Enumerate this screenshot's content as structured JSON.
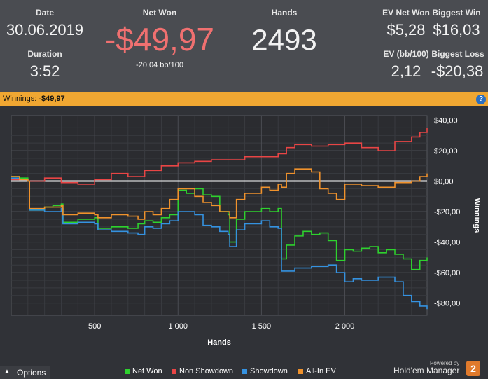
{
  "header": {
    "date_label": "Date",
    "date_value": "30.06.2019",
    "duration_label": "Duration",
    "duration_value": "3:52",
    "netwon_label": "Net Won",
    "netwon_value": "-$49,97",
    "netwon_sub": "-20,04 bb/100",
    "hands_label": "Hands",
    "hands_value": "2493",
    "evnet_label": "EV Net Won",
    "evnet_value": "$5,28",
    "bigwin_label": "Biggest Win",
    "bigwin_value": "$16,03",
    "evbb_label": "EV (bb/100)",
    "evbb_value": "2,12",
    "bigloss_label": "Biggest Loss",
    "bigloss_value": "-$20,38",
    "netwon_color": "#f07070"
  },
  "bar": {
    "label": "Winnings:",
    "value": "-$49,97",
    "help": "?"
  },
  "footer": {
    "options_label": "Options",
    "powered_label": "Powered by",
    "brand_label": "Hold'em Manager",
    "logo_text": "2"
  },
  "chart_data": {
    "type": "line",
    "xlabel": "Hands",
    "ylabel": "Winnings",
    "xlim": [
      0,
      2493
    ],
    "ylim": [
      -88,
      43
    ],
    "x_ticks": [
      500,
      1000,
      1500,
      2000
    ],
    "x_tick_labels": [
      "500",
      "1 000",
      "1 500",
      "2 000"
    ],
    "y_ticks": [
      40,
      20,
      0,
      -20,
      -40,
      -60,
      -80
    ],
    "y_tick_labels": [
      "$40,00",
      "$20,00",
      "$0,00",
      "-$20,00",
      "-$40,00",
      "-$60,00",
      "-$80,00"
    ],
    "grid": true,
    "legend_position": "bottom",
    "series": [
      {
        "name": "Net Won",
        "color": "#2ed12e",
        "x": [
          0,
          50,
          100,
          110,
          200,
          250,
          300,
          310,
          400,
          500,
          520,
          600,
          700,
          760,
          800,
          850,
          900,
          950,
          1000,
          1050,
          1100,
          1150,
          1200,
          1250,
          1300,
          1310,
          1350,
          1400,
          1500,
          1550,
          1600,
          1620,
          1650,
          1700,
          1750,
          1800,
          1850,
          1900,
          1950,
          2000,
          2050,
          2100,
          2150,
          2200,
          2250,
          2300,
          2350,
          2400,
          2450,
          2493
        ],
        "y": [
          3,
          2,
          0,
          -19,
          -17,
          -16,
          -15,
          -27,
          -25,
          -24,
          -31,
          -30,
          -31,
          -28,
          -26,
          -27,
          -24,
          -22,
          -6,
          -8,
          -5,
          -9,
          -10,
          -20,
          -22,
          -40,
          -25,
          -20,
          -18,
          -20,
          -18,
          -51,
          -42,
          -36,
          -33,
          -35,
          -34,
          -39,
          -52,
          -45,
          -46,
          -44,
          -43,
          -47,
          -45,
          -48,
          -51,
          -58,
          -52,
          -50
        ]
      },
      {
        "name": "Non Showdown",
        "color": "#e84545",
        "x": [
          0,
          100,
          200,
          300,
          400,
          500,
          600,
          700,
          800,
          900,
          1000,
          1100,
          1200,
          1300,
          1400,
          1500,
          1600,
          1650,
          1700,
          1800,
          1900,
          2000,
          2100,
          2200,
          2300,
          2400,
          2450,
          2493
        ],
        "y": [
          1,
          0,
          2,
          -1,
          -2,
          1,
          5,
          3,
          7,
          10,
          12,
          13,
          14,
          14,
          16,
          16,
          18,
          22,
          24,
          23,
          24,
          25,
          22,
          20,
          26,
          29,
          32,
          35
        ]
      },
      {
        "name": "Showdown",
        "color": "#3592e0",
        "x": [
          0,
          50,
          100,
          110,
          200,
          300,
          310,
          400,
          500,
          520,
          600,
          700,
          760,
          800,
          850,
          900,
          950,
          1000,
          1100,
          1150,
          1200,
          1250,
          1300,
          1310,
          1350,
          1400,
          1500,
          1550,
          1600,
          1620,
          1700,
          1800,
          1900,
          1950,
          2000,
          2050,
          2100,
          2200,
          2300,
          2350,
          2400,
          2450,
          2493
        ],
        "y": [
          2,
          1,
          0,
          -19,
          -20,
          -18,
          -28,
          -27,
          -28,
          -32,
          -33,
          -34,
          -35,
          -30,
          -31,
          -28,
          -26,
          -20,
          -22,
          -29,
          -30,
          -33,
          -35,
          -43,
          -32,
          -28,
          -26,
          -30,
          -31,
          -59,
          -57,
          -56,
          -55,
          -60,
          -66,
          -64,
          -65,
          -63,
          -66,
          -75,
          -79,
          -82,
          -84
        ]
      },
      {
        "name": "All-In EV",
        "color": "#f0922c",
        "x": [
          0,
          50,
          100,
          110,
          200,
          300,
          310,
          400,
          500,
          520,
          600,
          700,
          760,
          800,
          850,
          900,
          950,
          1000,
          1100,
          1150,
          1200,
          1250,
          1300,
          1310,
          1350,
          1400,
          1500,
          1550,
          1600,
          1620,
          1650,
          1700,
          1800,
          1850,
          1900,
          1950,
          2000,
          2100,
          2200,
          2300,
          2400,
          2450,
          2493
        ],
        "y": [
          3,
          1,
          0,
          -18,
          -17,
          -16,
          -22,
          -21,
          -22,
          -24,
          -22,
          -23,
          -25,
          -20,
          -22,
          -18,
          -12,
          -5,
          -10,
          -14,
          -16,
          -20,
          -20,
          -24,
          -12,
          -8,
          -4,
          -6,
          -2,
          -4,
          5,
          8,
          6,
          -5,
          -8,
          -12,
          -2,
          -3,
          -4,
          -1,
          0,
          3,
          5
        ]
      }
    ]
  }
}
